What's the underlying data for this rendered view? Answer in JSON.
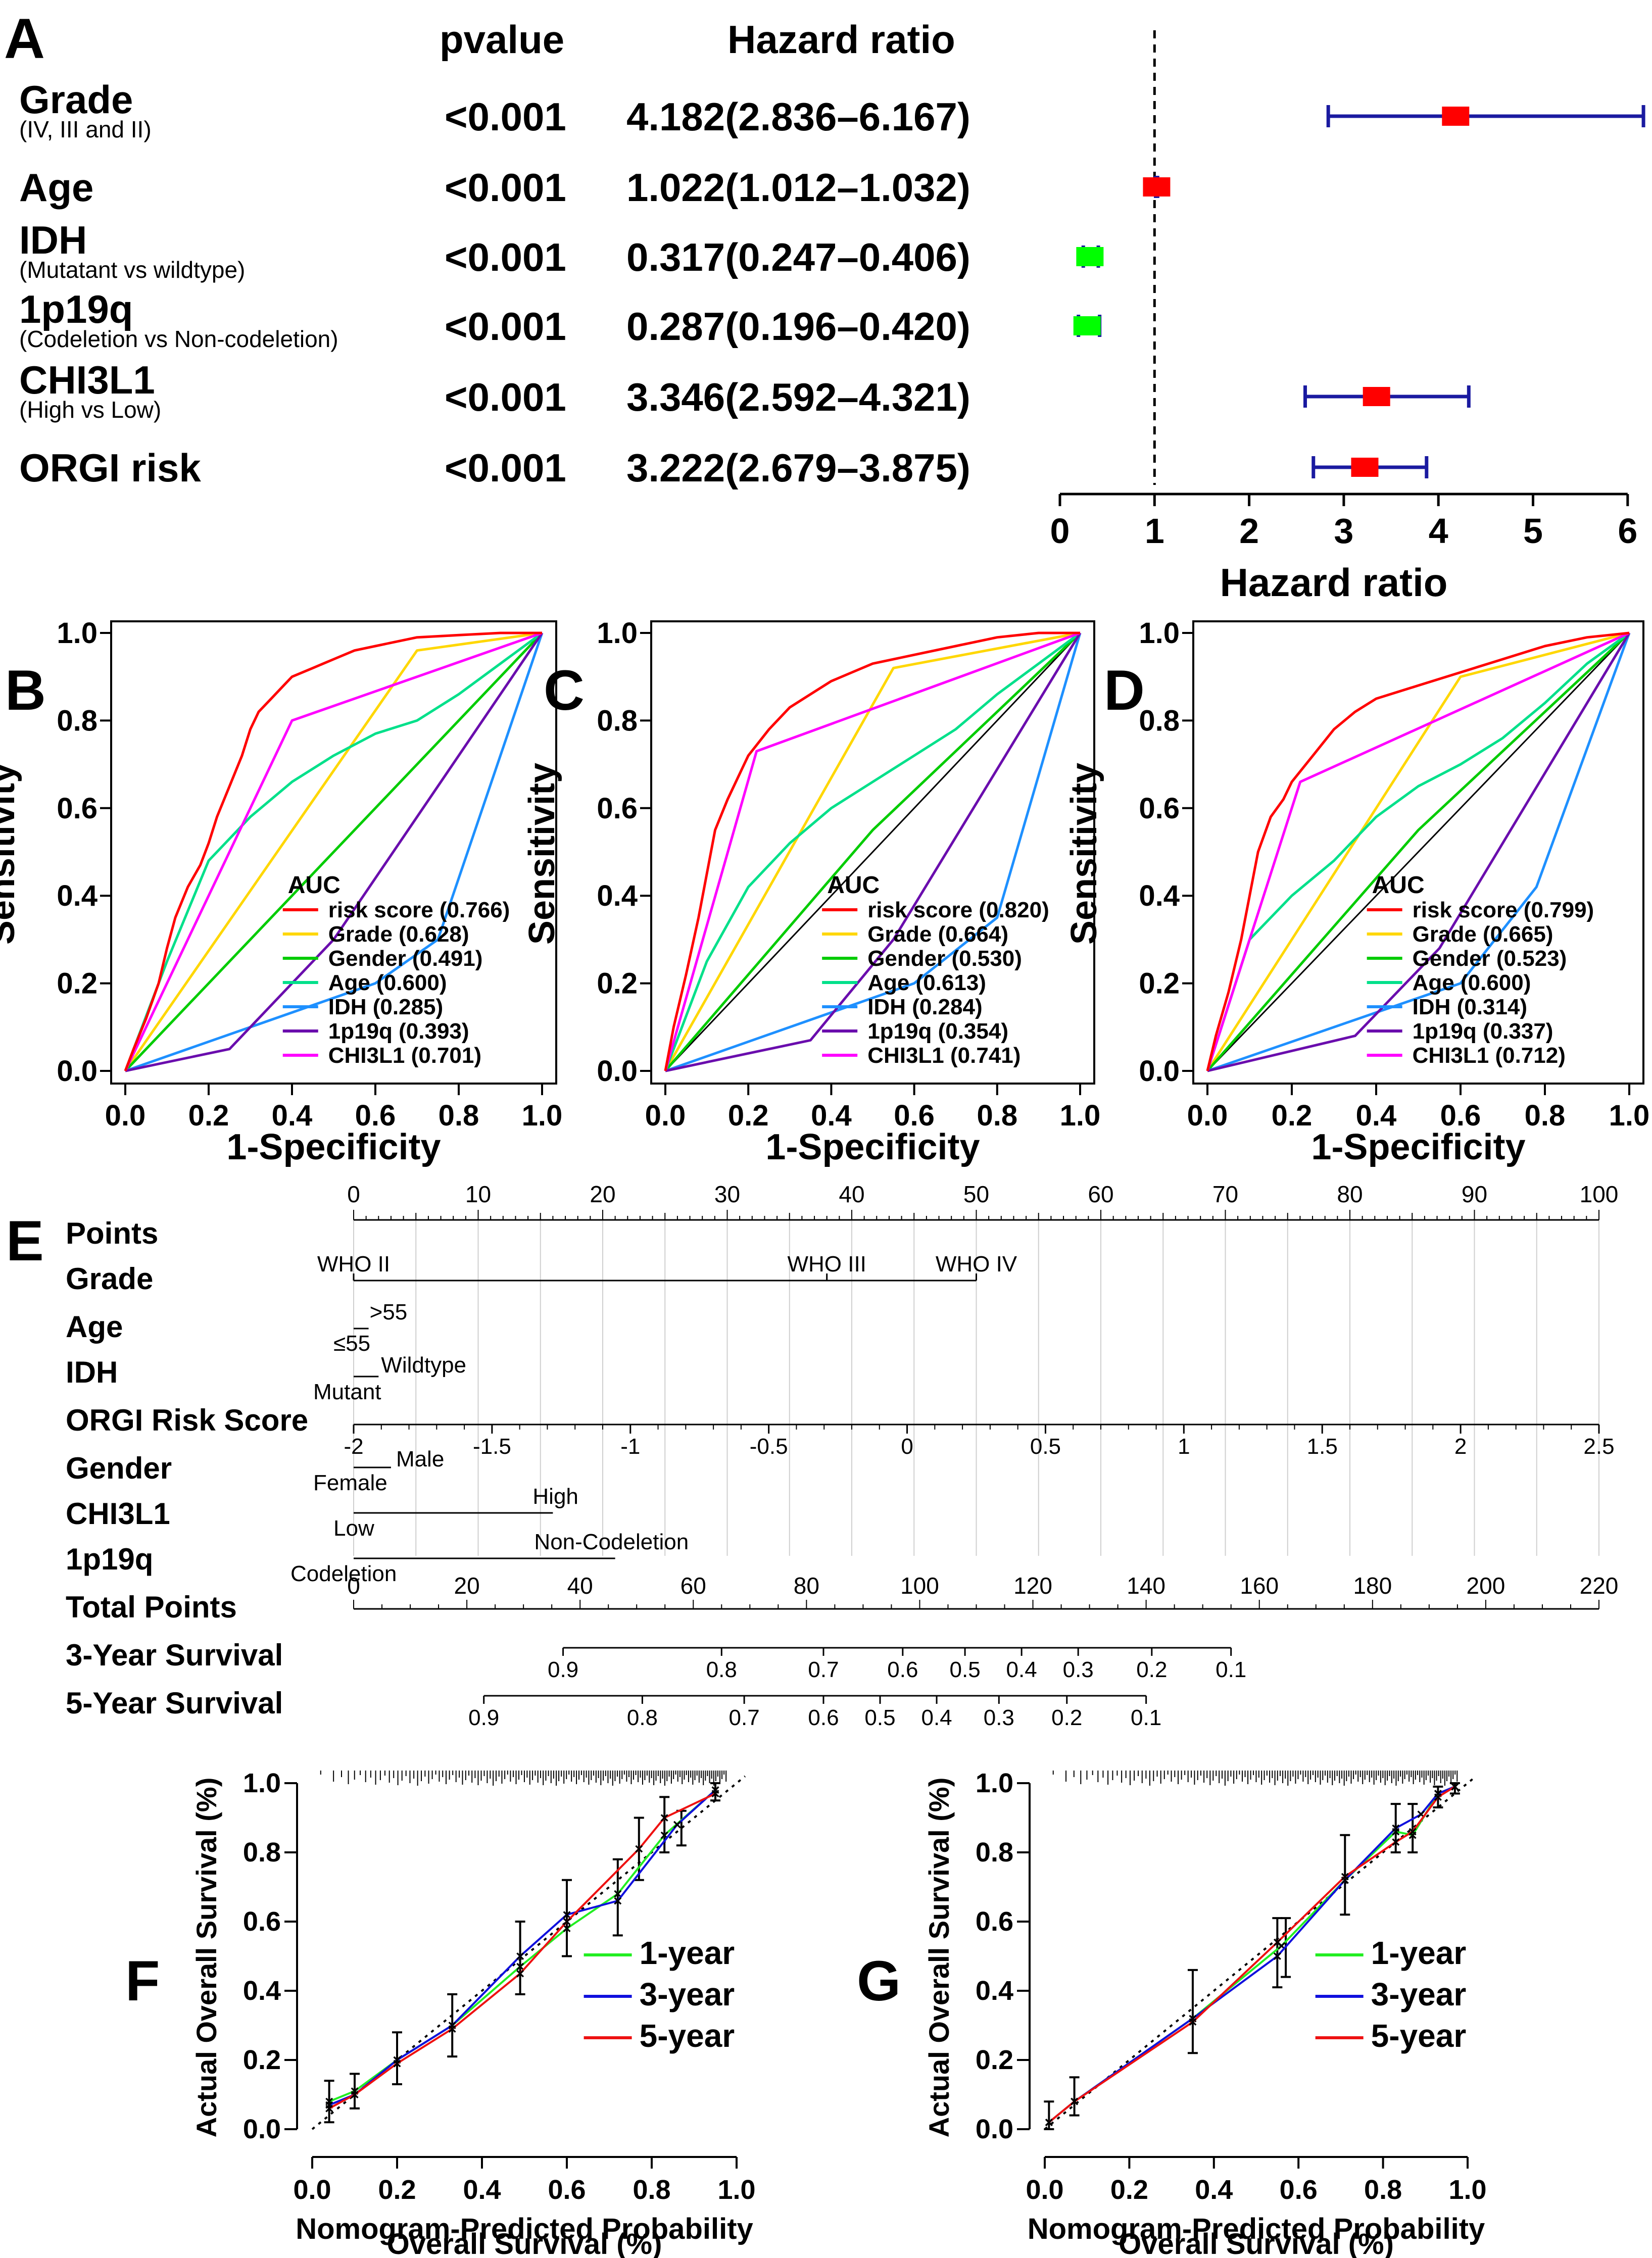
{
  "panel_labels": [
    "A",
    "B",
    "C",
    "D",
    "E",
    "F",
    "G"
  ],
  "chart_data": [
    {
      "id": "A",
      "type": "forest",
      "header_pvalue": "pvalue",
      "header_hr": "Hazard ratio",
      "xlabel": "Hazard ratio",
      "xlim": [
        0,
        6
      ],
      "xticks": [
        "0",
        "1",
        "2",
        "3",
        "4",
        "5",
        "6"
      ],
      "reference_line": 1,
      "rows": [
        {
          "name": "Grade",
          "sub": "(IV, III and II)",
          "p": "<0.001",
          "hr_text": "4.182(2.836–6.167)",
          "hr": 4.182,
          "lo": 2.836,
          "hi": 6.167,
          "color": "#ff0000"
        },
        {
          "name": "Age",
          "sub": "",
          "p": "<0.001",
          "hr_text": "1.022(1.012–1.032)",
          "hr": 1.022,
          "lo": 1.012,
          "hi": 1.032,
          "color": "#ff0000"
        },
        {
          "name": "IDH",
          "sub": "(Mutatant vs wildtype)",
          "p": "<0.001",
          "hr_text": "0.317(0.247–0.406)",
          "hr": 0.317,
          "lo": 0.247,
          "hi": 0.406,
          "color": "#00ff00"
        },
        {
          "name": "1p19q",
          "sub": "(Codeletion vs Non-codeletion)",
          "p": "<0.001",
          "hr_text": "0.287(0.196–0.420)",
          "hr": 0.287,
          "lo": 0.196,
          "hi": 0.42,
          "color": "#00ff00"
        },
        {
          "name": "CHI3L1",
          "sub": "(High vs Low)",
          "p": "<0.001",
          "hr_text": "3.346(2.592–4.321)",
          "hr": 3.346,
          "lo": 2.592,
          "hi": 4.321,
          "color": "#ff0000"
        },
        {
          "name": "ORGI risk",
          "sub": "",
          "p": "<0.001",
          "hr_text": "3.222(2.679–3.875)",
          "hr": 3.222,
          "lo": 2.679,
          "hi": 3.875,
          "color": "#ff0000"
        }
      ]
    },
    {
      "id": "B",
      "type": "roc",
      "xlabel": "1-Specificity",
      "ylabel": "Sensitivity",
      "legend_title": "AUC",
      "ticks": [
        "0.0",
        "0.2",
        "0.4",
        "0.6",
        "0.8",
        "1.0"
      ],
      "series": [
        {
          "name": "risk score (0.766)",
          "color": "#ff0000",
          "x": [
            0,
            0.02,
            0.05,
            0.08,
            0.1,
            0.12,
            0.15,
            0.18,
            0.2,
            0.22,
            0.25,
            0.28,
            0.3,
            0.32,
            0.35,
            0.38,
            0.4,
            0.45,
            0.5,
            0.55,
            0.6,
            0.65,
            0.7,
            0.8,
            0.9,
            1
          ],
          "y": [
            0,
            0.05,
            0.12,
            0.2,
            0.28,
            0.35,
            0.42,
            0.47,
            0.52,
            0.58,
            0.65,
            0.72,
            0.78,
            0.82,
            0.85,
            0.88,
            0.9,
            0.92,
            0.94,
            0.96,
            0.97,
            0.98,
            0.99,
            0.995,
            1,
            1
          ]
        },
        {
          "name": "Grade (0.628)",
          "color": "#ffd700",
          "x": [
            0,
            0.7,
            1
          ],
          "y": [
            0,
            0.96,
            1
          ]
        },
        {
          "name": "Gender (0.491)",
          "color": "#00cc00",
          "x": [
            0,
            1
          ],
          "y": [
            0,
            1
          ]
        },
        {
          "name": "Age (0.600)",
          "color": "#00e08a",
          "x": [
            0,
            0.1,
            0.2,
            0.3,
            0.4,
            0.5,
            0.6,
            0.7,
            0.8,
            0.9,
            1
          ],
          "y": [
            0,
            0.25,
            0.48,
            0.58,
            0.66,
            0.72,
            0.77,
            0.8,
            0.86,
            0.93,
            1
          ]
        },
        {
          "name": "IDH (0.285)",
          "color": "#1e90ff",
          "x": [
            0,
            0.6,
            0.75,
            1
          ],
          "y": [
            0,
            0.2,
            0.3,
            1
          ]
        },
        {
          "name": "1p19q (0.393)",
          "color": "#6a0dad",
          "x": [
            0,
            0.25,
            0.5,
            1
          ],
          "y": [
            0,
            0.05,
            0.3,
            1
          ]
        },
        {
          "name": "CHI3L1 (0.701)",
          "color": "#ff00ff",
          "x": [
            0,
            0.4,
            1
          ],
          "y": [
            0,
            0.8,
            1
          ]
        }
      ]
    },
    {
      "id": "C",
      "type": "roc",
      "xlabel": "1-Specificity",
      "ylabel": "Sensitivity",
      "legend_title": "AUC",
      "ticks": [
        "0.0",
        "0.2",
        "0.4",
        "0.6",
        "0.8",
        "1.0"
      ],
      "series": [
        {
          "name": "risk score (0.820)",
          "color": "#ff0000",
          "x": [
            0,
            0.02,
            0.05,
            0.08,
            0.1,
            0.12,
            0.15,
            0.18,
            0.2,
            0.25,
            0.3,
            0.35,
            0.4,
            0.45,
            0.5,
            0.6,
            0.7,
            0.8,
            0.9,
            1
          ],
          "y": [
            0,
            0.1,
            0.22,
            0.35,
            0.45,
            0.55,
            0.62,
            0.68,
            0.72,
            0.78,
            0.83,
            0.86,
            0.89,
            0.91,
            0.93,
            0.95,
            0.97,
            0.99,
            1,
            1
          ]
        },
        {
          "name": "Grade (0.664)",
          "color": "#ffd700",
          "x": [
            0,
            0.55,
            1
          ],
          "y": [
            0,
            0.92,
            1
          ]
        },
        {
          "name": "Gender (0.530)",
          "color": "#00cc00",
          "x": [
            0,
            0.5,
            1
          ],
          "y": [
            0,
            0.55,
            1
          ]
        },
        {
          "name": "Age (0.613)",
          "color": "#00e08a",
          "x": [
            0,
            0.1,
            0.2,
            0.3,
            0.4,
            0.5,
            0.6,
            0.7,
            0.8,
            0.9,
            1
          ],
          "y": [
            0,
            0.25,
            0.42,
            0.52,
            0.6,
            0.66,
            0.72,
            0.78,
            0.86,
            0.93,
            1
          ]
        },
        {
          "name": "IDH (0.284)",
          "color": "#1e90ff",
          "x": [
            0,
            0.6,
            0.8,
            1
          ],
          "y": [
            0,
            0.2,
            0.35,
            1
          ]
        },
        {
          "name": "1p19q (0.354)",
          "color": "#6a0dad",
          "x": [
            0,
            0.35,
            0.55,
            1
          ],
          "y": [
            0,
            0.07,
            0.3,
            1
          ]
        },
        {
          "name": "CHI3L1 (0.741)",
          "color": "#ff00ff",
          "x": [
            0,
            0.22,
            1
          ],
          "y": [
            0,
            0.73,
            1
          ]
        }
      ]
    },
    {
      "id": "D",
      "type": "roc",
      "xlabel": "1-Specificity",
      "ylabel": "Sensitivity",
      "legend_title": "AUC",
      "ticks": [
        "0.0",
        "0.2",
        "0.4",
        "0.6",
        "0.8",
        "1.0"
      ],
      "series": [
        {
          "name": "risk score (0.799)",
          "color": "#ff0000",
          "x": [
            0,
            0.02,
            0.05,
            0.08,
            0.1,
            0.12,
            0.15,
            0.18,
            0.2,
            0.25,
            0.3,
            0.35,
            0.4,
            0.5,
            0.6,
            0.7,
            0.8,
            0.9,
            1
          ],
          "y": [
            0,
            0.08,
            0.18,
            0.3,
            0.4,
            0.5,
            0.58,
            0.62,
            0.66,
            0.72,
            0.78,
            0.82,
            0.85,
            0.88,
            0.91,
            0.94,
            0.97,
            0.99,
            1
          ]
        },
        {
          "name": "Grade (0.665)",
          "color": "#ffd700",
          "x": [
            0,
            0.6,
            1
          ],
          "y": [
            0,
            0.9,
            1
          ]
        },
        {
          "name": "Gender (0.523)",
          "color": "#00cc00",
          "x": [
            0,
            0.5,
            1
          ],
          "y": [
            0,
            0.55,
            1
          ]
        },
        {
          "name": "Age (0.600)",
          "color": "#00e08a",
          "x": [
            0,
            0.1,
            0.2,
            0.3,
            0.4,
            0.5,
            0.6,
            0.7,
            0.8,
            0.9,
            1
          ],
          "y": [
            0,
            0.3,
            0.4,
            0.48,
            0.58,
            0.65,
            0.7,
            0.76,
            0.84,
            0.93,
            1
          ]
        },
        {
          "name": "IDH (0.314)",
          "color": "#1e90ff",
          "x": [
            0,
            0.6,
            0.78,
            1
          ],
          "y": [
            0,
            0.2,
            0.42,
            1
          ]
        },
        {
          "name": "1p19q (0.337)",
          "color": "#6a0dad",
          "x": [
            0,
            0.35,
            0.55,
            1
          ],
          "y": [
            0,
            0.08,
            0.28,
            1
          ]
        },
        {
          "name": "CHI3L1 (0.712)",
          "color": "#ff00ff",
          "x": [
            0,
            0.22,
            1
          ],
          "y": [
            0,
            0.66,
            1
          ]
        }
      ]
    },
    {
      "id": "E",
      "type": "nomogram",
      "row_labels": [
        "Points",
        "Grade",
        "Age",
        "IDH",
        "ORGI Risk Score",
        "Gender",
        "CHI3L1",
        "1p19q",
        "Total Points",
        "3-Year Survival",
        "5-Year Survival"
      ],
      "points_ticks": [
        0,
        10,
        20,
        30,
        40,
        50,
        60,
        70,
        80,
        90,
        100
      ],
      "grade": {
        "labels": [
          "WHO II",
          "WHO III",
          "WHO IV"
        ],
        "points": [
          0,
          38,
          50
        ]
      },
      "age": {
        "labels": [
          ">55",
          "≤55"
        ],
        "points": [
          1.2,
          0
        ]
      },
      "idh": {
        "labels": [
          "Wildtype",
          "Mutant"
        ],
        "points": [
          2,
          0
        ]
      },
      "risk": {
        "ticks": [
          "-2",
          "-1.5",
          "-1",
          "-0.5",
          "0",
          "0.5",
          "1",
          "1.5",
          "2",
          "2.5"
        ],
        "values": [
          -2,
          -1.5,
          -1,
          -0.5,
          0,
          0.5,
          1,
          1.5,
          2,
          2.5
        ]
      },
      "gender": {
        "labels": [
          "Male",
          "Female"
        ],
        "points": [
          3,
          0
        ]
      },
      "chi3l1": {
        "labels": [
          "High",
          "Low"
        ],
        "points": [
          16,
          0
        ]
      },
      "p1p19q": {
        "labels": [
          "Non-Codeletion",
          "Codeletion"
        ],
        "points": [
          21,
          0
        ]
      },
      "total_ticks": [
        0,
        20,
        40,
        60,
        80,
        100,
        120,
        140,
        160,
        180,
        200,
        220
      ],
      "surv3": {
        "labels": [
          "0.9",
          "0.8",
          "0.7",
          "0.6",
          "0.5",
          "0.4",
          "0.3",
          "0.2",
          "0.1"
        ],
        "totals": [
          37,
          65,
          83,
          97,
          108,
          118,
          128,
          141,
          155
        ]
      },
      "surv5": {
        "labels": [
          "0.9",
          "0.8",
          "0.7",
          "0.6",
          "0.5",
          "0.4",
          "0.3",
          "0.2",
          "0.1"
        ],
        "totals": [
          23,
          51,
          69,
          83,
          93,
          103,
          114,
          126,
          140
        ]
      }
    },
    {
      "id": "F",
      "type": "calibration",
      "xlabel": "Nomogram-Predicted Probability",
      "xlabel2": "Overall Survival (%)",
      "ylabel": "Actual Overall Survival (%)",
      "ticks": [
        "0.0",
        "0.2",
        "0.4",
        "0.6",
        "0.8",
        "1.0"
      ],
      "series": [
        {
          "name": "1-year",
          "color": "#22ee22",
          "x": [
            0.04,
            0.1,
            0.2,
            0.33,
            0.49,
            0.6,
            0.72,
            0.83,
            0.95
          ],
          "y": [
            0.08,
            0.11,
            0.2,
            0.3,
            0.47,
            0.58,
            0.68,
            0.85,
            0.98
          ]
        },
        {
          "name": "3-year",
          "color": "#1010dd",
          "x": [
            0.04,
            0.1,
            0.2,
            0.33,
            0.49,
            0.6,
            0.72,
            0.86,
            0.95
          ],
          "y": [
            0.07,
            0.1,
            0.2,
            0.3,
            0.5,
            0.62,
            0.66,
            0.88,
            0.98
          ]
        },
        {
          "name": "5-year",
          "color": "#ee1111",
          "x": [
            0.04,
            0.1,
            0.2,
            0.33,
            0.49,
            0.6,
            0.77,
            0.83,
            0.95
          ],
          "y": [
            0.06,
            0.1,
            0.19,
            0.29,
            0.45,
            0.6,
            0.81,
            0.9,
            0.97
          ]
        }
      ],
      "error_bars": [
        {
          "x": 0.04,
          "lo": 0.02,
          "hi": 0.14
        },
        {
          "x": 0.1,
          "lo": 0.06,
          "hi": 0.16
        },
        {
          "x": 0.2,
          "lo": 0.13,
          "hi": 0.28
        },
        {
          "x": 0.33,
          "lo": 0.21,
          "hi": 0.39
        },
        {
          "x": 0.49,
          "lo": 0.39,
          "hi": 0.6
        },
        {
          "x": 0.6,
          "lo": 0.5,
          "hi": 0.72
        },
        {
          "x": 0.72,
          "lo": 0.56,
          "hi": 0.78
        },
        {
          "x": 0.77,
          "lo": 0.72,
          "hi": 0.9
        },
        {
          "x": 0.83,
          "lo": 0.8,
          "hi": 0.96
        },
        {
          "x": 0.87,
          "lo": 0.82,
          "hi": 0.92
        },
        {
          "x": 0.95,
          "lo": 0.95,
          "hi": 1.0
        }
      ]
    },
    {
      "id": "G",
      "type": "calibration",
      "xlabel": "Nomogram-Predicted Probability",
      "xlabel2": "Overall Survival (%)",
      "ylabel": "Actual Overall Survival (%)",
      "ticks": [
        "0.0",
        "0.2",
        "0.4",
        "0.6",
        "0.8",
        "1.0"
      ],
      "series": [
        {
          "name": "1-year",
          "color": "#22ee22",
          "x": [
            0.01,
            0.07,
            0.35,
            0.56,
            0.71,
            0.83,
            0.87,
            0.93,
            0.97
          ],
          "y": [
            0.02,
            0.08,
            0.32,
            0.53,
            0.72,
            0.86,
            0.85,
            0.97,
            0.99
          ]
        },
        {
          "name": "3-year",
          "color": "#1010dd",
          "x": [
            0.01,
            0.07,
            0.35,
            0.55,
            0.71,
            0.83,
            0.89,
            0.93,
            0.97
          ],
          "y": [
            0.02,
            0.08,
            0.32,
            0.5,
            0.72,
            0.87,
            0.91,
            0.97,
            0.99
          ]
        },
        {
          "name": "5-year",
          "color": "#ee1111",
          "x": [
            0.01,
            0.07,
            0.35,
            0.55,
            0.71,
            0.83,
            0.87,
            0.93,
            0.97
          ],
          "y": [
            0.02,
            0.08,
            0.31,
            0.54,
            0.73,
            0.83,
            0.86,
            0.96,
            0.99
          ]
        }
      ],
      "error_bars": [
        {
          "x": 0.01,
          "lo": 0.0,
          "hi": 0.08
        },
        {
          "x": 0.07,
          "lo": 0.04,
          "hi": 0.15
        },
        {
          "x": 0.35,
          "lo": 0.22,
          "hi": 0.46
        },
        {
          "x": 0.55,
          "lo": 0.41,
          "hi": 0.61
        },
        {
          "x": 0.57,
          "lo": 0.44,
          "hi": 0.61
        },
        {
          "x": 0.71,
          "lo": 0.62,
          "hi": 0.85
        },
        {
          "x": 0.83,
          "lo": 0.8,
          "hi": 0.94
        },
        {
          "x": 0.87,
          "lo": 0.8,
          "hi": 0.94
        },
        {
          "x": 0.93,
          "lo": 0.93,
          "hi": 0.99
        },
        {
          "x": 0.97,
          "lo": 0.97,
          "hi": 1.0
        }
      ]
    }
  ]
}
